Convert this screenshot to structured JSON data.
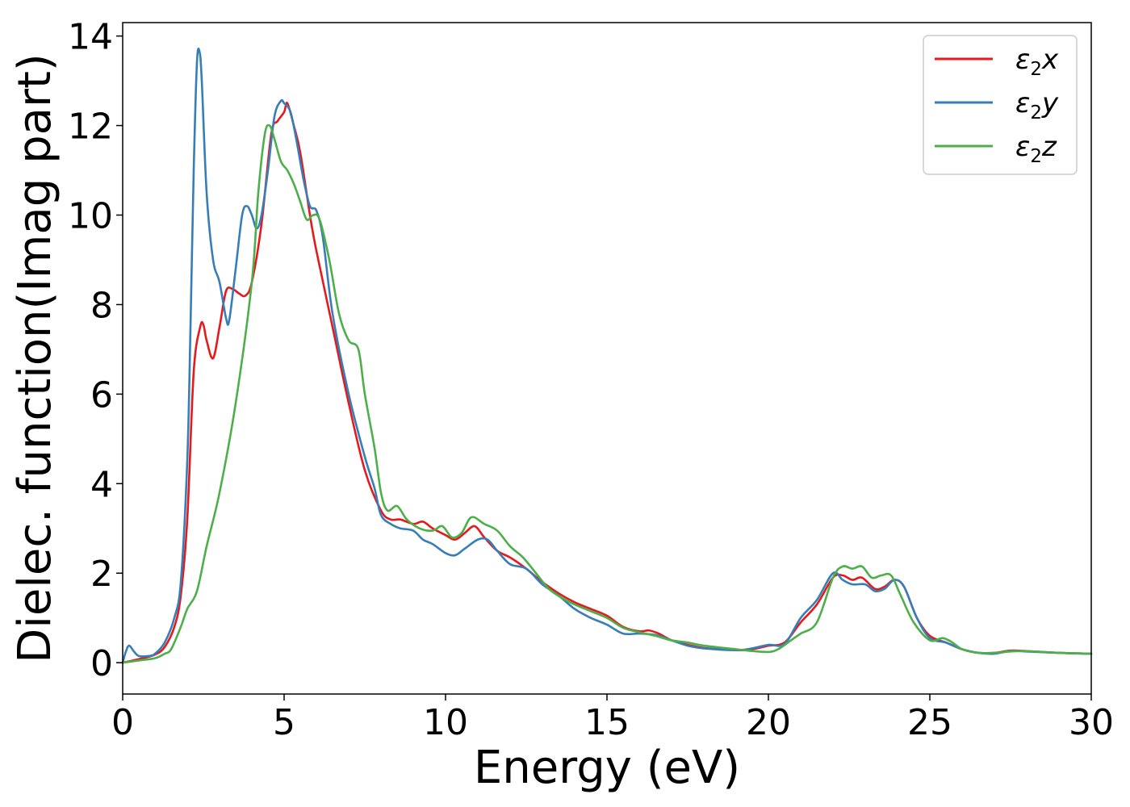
{
  "chart_data": {
    "type": "line",
    "title": "",
    "xlabel": "Energy (eV)",
    "ylabel": "Dielec. function(Imag part)",
    "xlim": [
      0,
      30
    ],
    "ylim": [
      -0.7,
      14.3
    ],
    "xticks": [
      0,
      5,
      10,
      15,
      20,
      25,
      30
    ],
    "yticks": [
      0,
      2,
      4,
      6,
      8,
      10,
      12,
      14
    ],
    "grid": false,
    "legend_position": "top-right",
    "series": [
      {
        "name": "ε₂x",
        "label_main": "ε",
        "label_sub": "2",
        "label_tail": "x",
        "color": "#e41a1c",
        "points": [
          [
            0,
            0
          ],
          [
            0.5,
            0.08
          ],
          [
            1,
            0.18
          ],
          [
            1.3,
            0.35
          ],
          [
            1.6,
            0.8
          ],
          [
            1.8,
            1.5
          ],
          [
            2.0,
            3.2
          ],
          [
            2.2,
            6.5
          ],
          [
            2.4,
            7.5
          ],
          [
            2.5,
            7.55
          ],
          [
            2.6,
            7.2
          ],
          [
            2.8,
            6.8
          ],
          [
            3.0,
            7.5
          ],
          [
            3.2,
            8.3
          ],
          [
            3.4,
            8.35
          ],
          [
            3.6,
            8.25
          ],
          [
            3.8,
            8.2
          ],
          [
            4.0,
            8.5
          ],
          [
            4.3,
            9.8
          ],
          [
            4.6,
            11.8
          ],
          [
            4.8,
            12.1
          ],
          [
            5.0,
            12.3
          ],
          [
            5.1,
            12.5
          ],
          [
            5.3,
            12.0
          ],
          [
            5.5,
            11.4
          ],
          [
            5.8,
            10.0
          ],
          [
            6.0,
            9.2
          ],
          [
            6.5,
            7.5
          ],
          [
            7.0,
            5.8
          ],
          [
            7.5,
            4.3
          ],
          [
            8.0,
            3.4
          ],
          [
            8.3,
            3.2
          ],
          [
            8.6,
            3.2
          ],
          [
            9.0,
            3.1
          ],
          [
            9.3,
            3.15
          ],
          [
            9.6,
            3.0
          ],
          [
            10.0,
            2.85
          ],
          [
            10.3,
            2.75
          ],
          [
            10.6,
            2.9
          ],
          [
            10.9,
            3.05
          ],
          [
            11.2,
            2.8
          ],
          [
            11.6,
            2.5
          ],
          [
            12.0,
            2.35
          ],
          [
            12.5,
            2.1
          ],
          [
            13.0,
            1.8
          ],
          [
            13.5,
            1.55
          ],
          [
            14.0,
            1.35
          ],
          [
            14.5,
            1.2
          ],
          [
            15.0,
            1.05
          ],
          [
            15.5,
            0.8
          ],
          [
            16.0,
            0.7
          ],
          [
            16.3,
            0.72
          ],
          [
            16.6,
            0.65
          ],
          [
            17.0,
            0.5
          ],
          [
            17.5,
            0.4
          ],
          [
            18.0,
            0.33
          ],
          [
            19.0,
            0.28
          ],
          [
            19.5,
            0.3
          ],
          [
            20.0,
            0.38
          ],
          [
            20.5,
            0.45
          ],
          [
            21.0,
            0.9
          ],
          [
            21.5,
            1.3
          ],
          [
            22.0,
            1.9
          ],
          [
            22.3,
            1.95
          ],
          [
            22.6,
            1.85
          ],
          [
            22.9,
            1.9
          ],
          [
            23.3,
            1.65
          ],
          [
            23.6,
            1.7
          ],
          [
            23.9,
            1.85
          ],
          [
            24.2,
            1.7
          ],
          [
            24.6,
            1.0
          ],
          [
            25.0,
            0.6
          ],
          [
            25.5,
            0.45
          ],
          [
            26.0,
            0.3
          ],
          [
            26.5,
            0.22
          ],
          [
            27.0,
            0.22
          ],
          [
            27.5,
            0.27
          ],
          [
            28.0,
            0.26
          ],
          [
            29.0,
            0.22
          ],
          [
            30.0,
            0.2
          ]
        ]
      },
      {
        "name": "ε₂y",
        "label_main": "ε",
        "label_sub": "2",
        "label_tail": "y",
        "color": "#377eb8",
        "points": [
          [
            0,
            0
          ],
          [
            0.1,
            0.25
          ],
          [
            0.2,
            0.38
          ],
          [
            0.35,
            0.25
          ],
          [
            0.5,
            0.15
          ],
          [
            0.8,
            0.15
          ],
          [
            1.0,
            0.2
          ],
          [
            1.3,
            0.45
          ],
          [
            1.6,
            1.0
          ],
          [
            1.8,
            1.8
          ],
          [
            2.0,
            4.5
          ],
          [
            2.1,
            7.5
          ],
          [
            2.2,
            11.0
          ],
          [
            2.3,
            13.4
          ],
          [
            2.38,
            13.65
          ],
          [
            2.45,
            13.0
          ],
          [
            2.6,
            10.5
          ],
          [
            2.8,
            9.0
          ],
          [
            3.0,
            8.5
          ],
          [
            3.2,
            7.7
          ],
          [
            3.3,
            7.65
          ],
          [
            3.5,
            8.8
          ],
          [
            3.7,
            10.0
          ],
          [
            3.85,
            10.2
          ],
          [
            4.0,
            10.0
          ],
          [
            4.15,
            9.7
          ],
          [
            4.3,
            10.0
          ],
          [
            4.5,
            11.0
          ],
          [
            4.7,
            12.2
          ],
          [
            4.9,
            12.55
          ],
          [
            5.0,
            12.5
          ],
          [
            5.2,
            12.3
          ],
          [
            5.4,
            11.6
          ],
          [
            5.6,
            10.8
          ],
          [
            5.8,
            10.2
          ],
          [
            6.0,
            10.1
          ],
          [
            6.2,
            9.5
          ],
          [
            6.5,
            7.8
          ],
          [
            7.0,
            6.0
          ],
          [
            7.5,
            4.6
          ],
          [
            7.8,
            3.9
          ],
          [
            8.0,
            3.3
          ],
          [
            8.3,
            3.1
          ],
          [
            8.6,
            3.0
          ],
          [
            9.0,
            2.95
          ],
          [
            9.3,
            2.75
          ],
          [
            9.6,
            2.65
          ],
          [
            10.0,
            2.45
          ],
          [
            10.3,
            2.4
          ],
          [
            10.6,
            2.55
          ],
          [
            11.0,
            2.75
          ],
          [
            11.3,
            2.75
          ],
          [
            11.6,
            2.5
          ],
          [
            12.0,
            2.2
          ],
          [
            12.5,
            2.1
          ],
          [
            13.0,
            1.75
          ],
          [
            13.5,
            1.5
          ],
          [
            14.0,
            1.2
          ],
          [
            14.5,
            1.0
          ],
          [
            15.0,
            0.85
          ],
          [
            15.5,
            0.65
          ],
          [
            16.0,
            0.65
          ],
          [
            16.5,
            0.62
          ],
          [
            17.0,
            0.5
          ],
          [
            17.5,
            0.38
          ],
          [
            18.0,
            0.32
          ],
          [
            19.0,
            0.28
          ],
          [
            19.5,
            0.32
          ],
          [
            20.0,
            0.4
          ],
          [
            20.5,
            0.42
          ],
          [
            21.0,
            1.0
          ],
          [
            21.5,
            1.4
          ],
          [
            22.0,
            2.0
          ],
          [
            22.3,
            1.85
          ],
          [
            22.6,
            1.75
          ],
          [
            23.0,
            1.75
          ],
          [
            23.3,
            1.6
          ],
          [
            23.6,
            1.65
          ],
          [
            23.9,
            1.85
          ],
          [
            24.2,
            1.7
          ],
          [
            24.6,
            1.0
          ],
          [
            25.0,
            0.55
          ],
          [
            25.5,
            0.45
          ],
          [
            26.0,
            0.3
          ],
          [
            26.5,
            0.22
          ],
          [
            27.0,
            0.2
          ],
          [
            27.5,
            0.26
          ],
          [
            28.0,
            0.25
          ],
          [
            29.0,
            0.22
          ],
          [
            30.0,
            0.2
          ]
        ]
      },
      {
        "name": "ε₂z",
        "label_main": "ε",
        "label_sub": "2",
        "label_tail": "z",
        "color": "#4daf4a",
        "points": [
          [
            0,
            0
          ],
          [
            0.5,
            0.05
          ],
          [
            1.0,
            0.1
          ],
          [
            1.3,
            0.2
          ],
          [
            1.5,
            0.3
          ],
          [
            1.8,
            0.8
          ],
          [
            2.0,
            1.2
          ],
          [
            2.3,
            1.6
          ],
          [
            2.6,
            2.6
          ],
          [
            3.0,
            3.8
          ],
          [
            3.5,
            5.8
          ],
          [
            4.0,
            8.5
          ],
          [
            4.2,
            10.5
          ],
          [
            4.4,
            11.8
          ],
          [
            4.55,
            12.0
          ],
          [
            4.7,
            11.7
          ],
          [
            4.9,
            11.2
          ],
          [
            5.1,
            11.0
          ],
          [
            5.3,
            10.7
          ],
          [
            5.5,
            10.3
          ],
          [
            5.7,
            9.9
          ],
          [
            5.9,
            10.0
          ],
          [
            6.1,
            9.9
          ],
          [
            6.4,
            9.0
          ],
          [
            6.7,
            7.8
          ],
          [
            7.0,
            7.2
          ],
          [
            7.3,
            7.0
          ],
          [
            7.5,
            6.0
          ],
          [
            7.8,
            4.8
          ],
          [
            8.0,
            3.8
          ],
          [
            8.2,
            3.4
          ],
          [
            8.5,
            3.5
          ],
          [
            8.8,
            3.2
          ],
          [
            9.2,
            3.0
          ],
          [
            9.6,
            2.95
          ],
          [
            9.9,
            3.05
          ],
          [
            10.2,
            2.8
          ],
          [
            10.5,
            2.9
          ],
          [
            10.8,
            3.25
          ],
          [
            11.2,
            3.1
          ],
          [
            11.6,
            2.95
          ],
          [
            12.0,
            2.6
          ],
          [
            12.4,
            2.35
          ],
          [
            12.8,
            2.0
          ],
          [
            13.2,
            1.65
          ],
          [
            13.6,
            1.45
          ],
          [
            14.0,
            1.3
          ],
          [
            14.5,
            1.15
          ],
          [
            15.0,
            1.0
          ],
          [
            15.5,
            0.78
          ],
          [
            16.0,
            0.68
          ],
          [
            16.5,
            0.6
          ],
          [
            17.0,
            0.5
          ],
          [
            17.5,
            0.45
          ],
          [
            18.0,
            0.38
          ],
          [
            19.0,
            0.3
          ],
          [
            19.5,
            0.26
          ],
          [
            20.0,
            0.24
          ],
          [
            20.3,
            0.3
          ],
          [
            20.7,
            0.5
          ],
          [
            21.0,
            0.65
          ],
          [
            21.5,
            0.9
          ],
          [
            22.0,
            1.9
          ],
          [
            22.3,
            2.15
          ],
          [
            22.6,
            2.1
          ],
          [
            22.9,
            2.15
          ],
          [
            23.2,
            1.9
          ],
          [
            23.5,
            1.95
          ],
          [
            23.8,
            1.95
          ],
          [
            24.1,
            1.5
          ],
          [
            24.5,
            0.9
          ],
          [
            25.0,
            0.5
          ],
          [
            25.4,
            0.55
          ],
          [
            25.7,
            0.45
          ],
          [
            26.0,
            0.3
          ],
          [
            26.5,
            0.22
          ],
          [
            27.0,
            0.22
          ],
          [
            27.5,
            0.25
          ],
          [
            28.0,
            0.26
          ],
          [
            29.0,
            0.22
          ],
          [
            30.0,
            0.2
          ]
        ]
      }
    ]
  }
}
